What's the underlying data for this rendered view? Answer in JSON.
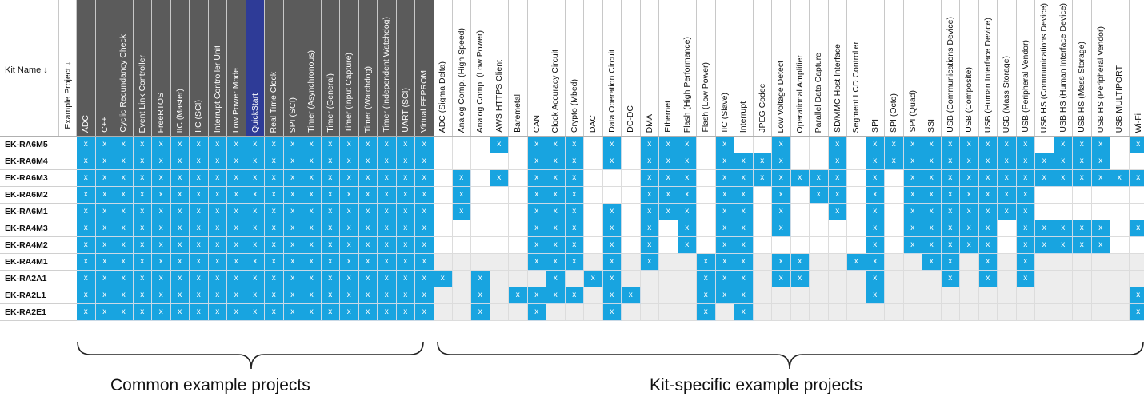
{
  "header": {
    "kit_name_label": "Kit Name ↓",
    "example_project_label": "Example Project ↓"
  },
  "mark": "x",
  "common_columns": [
    "ADC",
    "C++",
    "Cyclic Redundancy Check",
    "Event Link Controller",
    "FreeRTOS",
    "IIC (Master)",
    "IIC (SCI)",
    "Interrupt Controller Unit",
    "Low Power Mode",
    "QuickStart",
    "Real Time Clock",
    "SPI (SCI)",
    "Timer (Asynchronous)",
    "Timer (General)",
    "Timer (Input Capture)",
    "Timer (Watchdog)",
    "Timer (Independent Watchdog)",
    "UART (SCI)",
    "Virtual EEPROM"
  ],
  "selected_common_column": "QuickStart",
  "specific_columns": [
    "ADC (Sigma Delta)",
    "Analog Comp. (High Speed)",
    "Analog Comp. (Low Power)",
    "AWS HTTPS Client",
    "Baremetal",
    "CAN",
    "Clock Accuracy Circuit",
    "Crypto (Mbed)",
    "DAC",
    "Data Operation Circuit",
    "DC-DC",
    "DMA",
    "Ethernet",
    "Flash (High Performance)",
    "Flash (Low Power)",
    "IIC (Slave)",
    "Interrupt",
    "JPEG Codec",
    "Low Voltage Detect",
    "Operational Amplifier",
    "Parallel Data Capture",
    "SD/MMC Host Interface",
    "Segment LCD Controller",
    "SPI",
    "SPI (Octo)",
    "SPI (Quad)",
    "SSI",
    "USB (Communications Device)",
    "USB (Composite)",
    "USB (Human Interface Device)",
    "USB (Mass Storage)",
    "USB (Peripheral Vendor)",
    "USB HS (Communications Device)",
    "USB HS (Human Interface Device)",
    "USB HS (Mass Storage)",
    "USB HS (Peripheral Vendor)",
    "USB MULTIPORT",
    "Wi-Fi"
  ],
  "rows": [
    {
      "kit": "EK-RA6M5",
      "specific": [
        0,
        0,
        0,
        1,
        0,
        1,
        1,
        1,
        0,
        1,
        0,
        1,
        1,
        1,
        0,
        1,
        0,
        0,
        1,
        0,
        0,
        1,
        0,
        1,
        1,
        1,
        1,
        1,
        1,
        1,
        1,
        1,
        0,
        1,
        1,
        1,
        0,
        1
      ]
    },
    {
      "kit": "EK-RA6M4",
      "specific": [
        0,
        0,
        0,
        0,
        0,
        1,
        1,
        1,
        0,
        1,
        0,
        1,
        1,
        1,
        0,
        1,
        1,
        1,
        1,
        0,
        0,
        1,
        0,
        1,
        1,
        1,
        1,
        1,
        1,
        1,
        1,
        1,
        1,
        1,
        1,
        1,
        0,
        0
      ]
    },
    {
      "kit": "EK-RA6M3",
      "specific": [
        0,
        1,
        0,
        1,
        0,
        1,
        1,
        1,
        0,
        0,
        0,
        1,
        1,
        1,
        0,
        1,
        1,
        1,
        1,
        1,
        1,
        1,
        0,
        1,
        0,
        1,
        1,
        1,
        1,
        1,
        1,
        1,
        1,
        1,
        1,
        1,
        1,
        1
      ]
    },
    {
      "kit": "EK-RA6M2",
      "specific": [
        0,
        1,
        0,
        0,
        0,
        1,
        1,
        1,
        0,
        0,
        0,
        1,
        1,
        1,
        0,
        1,
        1,
        0,
        1,
        0,
        1,
        1,
        0,
        1,
        0,
        1,
        1,
        1,
        1,
        1,
        1,
        1,
        0,
        0,
        0,
        0,
        0,
        0
      ]
    },
    {
      "kit": "EK-RA6M1",
      "specific": [
        0,
        1,
        0,
        0,
        0,
        1,
        1,
        1,
        0,
        1,
        0,
        1,
        1,
        1,
        0,
        1,
        1,
        0,
        1,
        0,
        0,
        1,
        0,
        1,
        0,
        1,
        1,
        1,
        1,
        1,
        1,
        1,
        0,
        0,
        0,
        0,
        0,
        0
      ]
    },
    {
      "kit": "EK-RA4M3",
      "specific": [
        0,
        0,
        0,
        0,
        0,
        1,
        1,
        1,
        0,
        1,
        0,
        1,
        0,
        1,
        0,
        1,
        1,
        0,
        1,
        0,
        0,
        0,
        0,
        1,
        0,
        1,
        1,
        1,
        1,
        1,
        0,
        1,
        1,
        1,
        1,
        1,
        0,
        1
      ]
    },
    {
      "kit": "EK-RA4M2",
      "specific": [
        0,
        0,
        0,
        0,
        0,
        1,
        1,
        1,
        0,
        1,
        0,
        1,
        0,
        1,
        0,
        1,
        1,
        0,
        0,
        0,
        0,
        0,
        0,
        1,
        0,
        1,
        1,
        1,
        1,
        1,
        0,
        1,
        1,
        1,
        1,
        1,
        0,
        0
      ]
    },
    {
      "kit": "EK-RA4M1",
      "specific": [
        0,
        0,
        0,
        0,
        0,
        1,
        1,
        1,
        0,
        1,
        0,
        1,
        0,
        0,
        1,
        1,
        1,
        0,
        1,
        1,
        0,
        0,
        1,
        1,
        0,
        0,
        1,
        1,
        0,
        1,
        0,
        1,
        0,
        0,
        0,
        0,
        0,
        0
      ]
    },
    {
      "kit": "EK-RA2A1",
      "specific": [
        1,
        0,
        1,
        0,
        0,
        0,
        1,
        0,
        1,
        1,
        0,
        0,
        0,
        0,
        1,
        1,
        1,
        0,
        1,
        1,
        0,
        0,
        0,
        1,
        0,
        0,
        0,
        1,
        0,
        1,
        0,
        1,
        0,
        0,
        0,
        0,
        0,
        0
      ]
    },
    {
      "kit": "EK-RA2L1",
      "specific": [
        0,
        0,
        1,
        0,
        1,
        1,
        1,
        1,
        0,
        1,
        1,
        0,
        0,
        0,
        1,
        1,
        1,
        0,
        0,
        0,
        0,
        0,
        0,
        1,
        0,
        0,
        0,
        0,
        0,
        0,
        0,
        0,
        0,
        0,
        0,
        0,
        0,
        1
      ]
    },
    {
      "kit": "EK-RA2E1",
      "specific": [
        0,
        0,
        1,
        0,
        0,
        1,
        0,
        0,
        0,
        1,
        0,
        0,
        0,
        0,
        1,
        0,
        1,
        0,
        0,
        0,
        0,
        0,
        0,
        0,
        0,
        0,
        0,
        0,
        0,
        0,
        0,
        0,
        0,
        0,
        0,
        0,
        0,
        1
      ]
    }
  ],
  "captions": {
    "common": "Common example projects",
    "specific": "Kit-specific example projects"
  },
  "colors": {
    "on": "#18a4e0",
    "common_header": "#5b5b5b",
    "selected_header": "#2e3b97"
  }
}
